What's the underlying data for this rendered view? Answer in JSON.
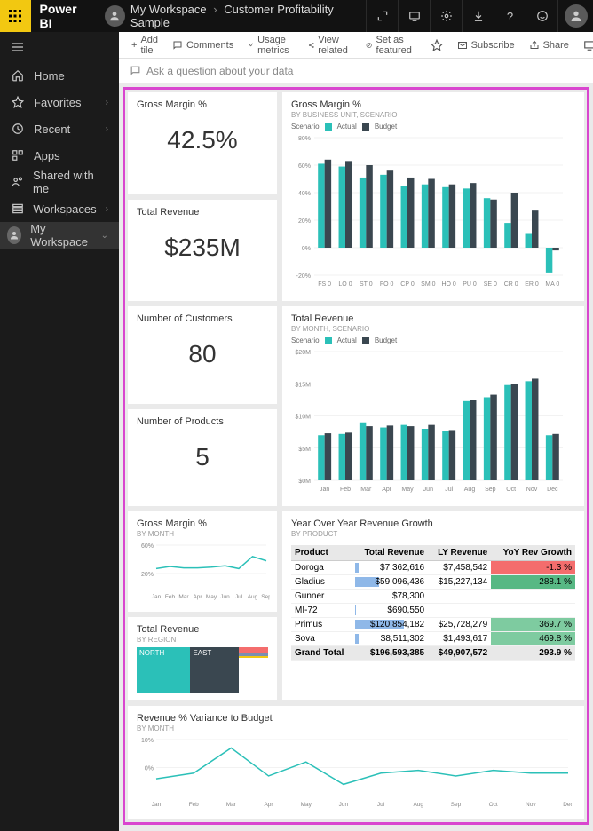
{
  "brand": "Power BI",
  "breadcrumb": {
    "workspace": "My Workspace",
    "item": "Customer Profitability Sample"
  },
  "topbar_icons": [
    "expand",
    "present",
    "gear",
    "download",
    "help",
    "smile",
    "user"
  ],
  "toolbar": {
    "add_tile": "Add tile",
    "comments": "Comments",
    "usage": "Usage metrics",
    "related": "View related",
    "featured": "Set as featured",
    "subscribe": "Subscribe",
    "share": "Share"
  },
  "qna_placeholder": "Ask a question about your data",
  "nav": {
    "home": "Home",
    "favorites": "Favorites",
    "recent": "Recent",
    "apps": "Apps",
    "shared": "Shared with me",
    "workspaces": "Workspaces",
    "my_workspace": "My Workspace"
  },
  "colors": {
    "actual": "#2bc0b8",
    "budget": "#3a4750",
    "accent": "#f2c811",
    "highlight_border": "#d946cf",
    "grid": "#e5e5e5",
    "red": "#f46d6d",
    "green": "#7ecba0",
    "dgreen": "#57b884",
    "blue_bar": "#8fb8e8"
  },
  "kpi": {
    "gm_pct": {
      "title": "Gross Margin %",
      "value": "42.5%"
    },
    "revenue": {
      "title": "Total Revenue",
      "value": "$235M"
    },
    "customers": {
      "title": "Number of Customers",
      "value": "80"
    },
    "products": {
      "title": "Number of Products",
      "value": "5"
    }
  },
  "gm_by_bu": {
    "title": "Gross Margin %",
    "subtitle": "By Business Unit, Scenario",
    "legend_label": "Scenario",
    "series_names": [
      "Actual",
      "Budget"
    ],
    "ylim": [
      -20,
      80
    ],
    "ytick_step": 20,
    "categories": [
      "FS 0",
      "LO 0",
      "ST 0",
      "FO 0",
      "CP 0",
      "SM 0",
      "HO 0",
      "PU 0",
      "SE 0",
      "CR 0",
      "ER 0",
      "MA 0"
    ],
    "actual": [
      61,
      59,
      51,
      53,
      45,
      46,
      44,
      43,
      36,
      18,
      10,
      -18
    ],
    "budget": [
      64,
      63,
      60,
      56,
      51,
      50,
      46,
      47,
      35,
      40,
      27,
      -2
    ]
  },
  "rev_by_month": {
    "title": "Total Revenue",
    "subtitle": "By Month, Scenario",
    "legend_label": "Scenario",
    "series_names": [
      "Actual",
      "Budget"
    ],
    "ylabel_prefix": "$",
    "ylabel_suffix": "M",
    "ylim": [
      0,
      20
    ],
    "ytick_step": 5,
    "categories": [
      "Jan",
      "Feb",
      "Mar",
      "Apr",
      "May",
      "Jun",
      "Jul",
      "Aug",
      "Sep",
      "Oct",
      "Nov",
      "Dec"
    ],
    "actual": [
      7.0,
      7.2,
      9.0,
      8.2,
      8.6,
      8.0,
      7.6,
      12.3,
      12.9,
      14.8,
      15.4,
      7.0
    ],
    "budget": [
      7.3,
      7.4,
      8.4,
      8.5,
      8.4,
      8.6,
      7.8,
      12.5,
      13.3,
      14.9,
      15.8,
      7.2
    ]
  },
  "gm_line": {
    "title": "Gross Margin %",
    "subtitle": "By Month",
    "ylim": [
      0,
      60
    ],
    "yticks": [
      20,
      60
    ],
    "categories": [
      "Jan",
      "Feb",
      "Mar",
      "Apr",
      "May",
      "Jun",
      "Jul",
      "Aug",
      "Sep"
    ],
    "values": [
      27,
      30,
      28,
      28,
      29,
      31,
      27,
      44,
      38
    ]
  },
  "rev_region": {
    "title": "Total Revenue",
    "subtitle": "By Region",
    "items": [
      {
        "label": "NORTH",
        "weight": 0.4,
        "color": "#2bc0b8"
      },
      {
        "label": "EAST",
        "weight": 0.36,
        "color": "#3a4750"
      },
      {
        "label": "",
        "weight": 0.12,
        "color": "#f46d6d"
      },
      {
        "label": "",
        "weight": 0.07,
        "color": "#7a8fb0"
      },
      {
        "label": "",
        "weight": 0.05,
        "color": "#f2c811"
      }
    ]
  },
  "yoy": {
    "title": "Year Over Year Revenue Growth",
    "subtitle": "By Product",
    "columns": [
      "Product",
      "Total Revenue",
      "LY Revenue",
      "YoY Rev Growth"
    ],
    "rows": [
      {
        "p": "Doroga",
        "tr": "$7,362,616",
        "tr_bar": 0.06,
        "ly": "$7,458,542",
        "yoy": "-1.3 %",
        "yoy_color": "#f46d6d"
      },
      {
        "p": "Gladius",
        "tr": "$59,096,436",
        "tr_bar": 0.49,
        "ly": "$15,227,134",
        "yoy": "288.1 %",
        "yoy_color": "#57b884"
      },
      {
        "p": "Gunner",
        "tr": "$78,300",
        "tr_bar": 0.0,
        "ly": "",
        "yoy": "",
        "yoy_color": ""
      },
      {
        "p": "MI-72",
        "tr": "$690,550",
        "tr_bar": 0.01,
        "ly": "",
        "yoy": "",
        "yoy_color": ""
      },
      {
        "p": "Primus",
        "tr": "$120,854,182",
        "tr_bar": 1.0,
        "ly": "$25,728,279",
        "yoy": "369.7 %",
        "yoy_color": "#7ecba0"
      },
      {
        "p": "Sova",
        "tr": "$8,511,302",
        "tr_bar": 0.07,
        "ly": "$1,493,617",
        "yoy": "469.8 %",
        "yoy_color": "#7ecba0"
      }
    ],
    "grand_total": {
      "p": "Grand Total",
      "tr": "$196,593,385",
      "ly": "$49,907,572",
      "yoy": "293.9 %"
    }
  },
  "variance": {
    "title": "Revenue % Variance to Budget",
    "subtitle": "By Month",
    "ylim": [
      -10,
      10
    ],
    "yticks": [
      0,
      10
    ],
    "categories": [
      "Jan",
      "Feb",
      "Mar",
      "Apr",
      "May",
      "Jun",
      "Jul",
      "Aug",
      "Sep",
      "Oct",
      "Nov",
      "Dec"
    ],
    "values": [
      -4,
      -2,
      7,
      -3,
      2,
      -6,
      -2,
      -1,
      -3,
      -1,
      -2,
      -2
    ]
  }
}
